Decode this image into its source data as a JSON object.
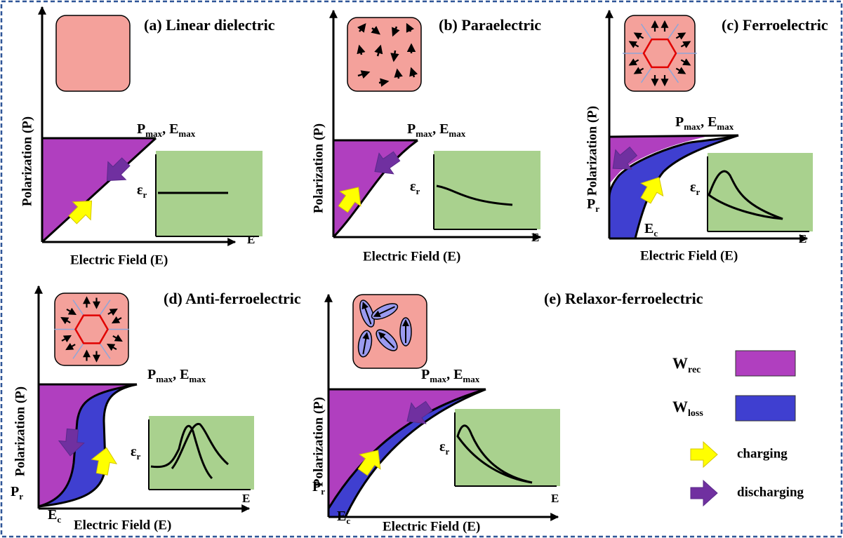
{
  "panels": [
    {
      "title": "(a) Linear dielectric",
      "y_label": "Polarization (P)",
      "x_label": "Electric Field (E)",
      "max_label": [
        "P",
        "max",
        ", E",
        "max"
      ],
      "inset": {
        "y_label": [
          "ε",
          "r"
        ],
        "x_label": "E"
      }
    },
    {
      "title": "(b) Paraelectric",
      "y_label": "Polarization (P)",
      "x_label": "Electric Field (E)",
      "max_label": [
        "P",
        "max",
        ", E",
        "max"
      ],
      "inset": {
        "y_label": [
          "ε",
          "r"
        ],
        "x_label": "E"
      }
    },
    {
      "title": "(c) Ferroelectric",
      "y_label": "Polarization (P)",
      "x_label": "Electric Field (E)",
      "max_label": [
        "P",
        "max",
        ", E",
        "max"
      ],
      "inset": {
        "y_label": [
          "ε",
          "r"
        ],
        "x_label": "E"
      },
      "pr_label": [
        "P",
        "r"
      ],
      "ec_label": [
        "E",
        "c"
      ]
    },
    {
      "title": "(d) Anti-ferroelectric",
      "y_label": "Polarization (P)",
      "x_label": "Electric Field (E)",
      "max_label": [
        "P",
        "max",
        ", E",
        "max"
      ],
      "inset": {
        "y_label": [
          "ε",
          "r"
        ],
        "x_label": "E"
      },
      "pr_label": [
        "P",
        "r"
      ],
      "ec_label": [
        "E",
        "c"
      ]
    },
    {
      "title": "(e) Relaxor-ferroelectric",
      "y_label": "Polarization (P)",
      "x_label": "Electric Field (E)",
      "max_label": [
        "P",
        "max",
        ", E",
        "max"
      ],
      "inset": {
        "y_label": [
          "ε",
          "r"
        ],
        "x_label": "E"
      },
      "pr_label": [
        "P",
        "r"
      ],
      "ec_label": [
        "E",
        "c"
      ]
    }
  ],
  "legend": [
    {
      "symbol": [
        "W",
        "rec"
      ]
    },
    {
      "symbol": [
        "W",
        "loss"
      ]
    },
    {
      "label": "charging"
    },
    {
      "label": "discharging"
    }
  ]
}
